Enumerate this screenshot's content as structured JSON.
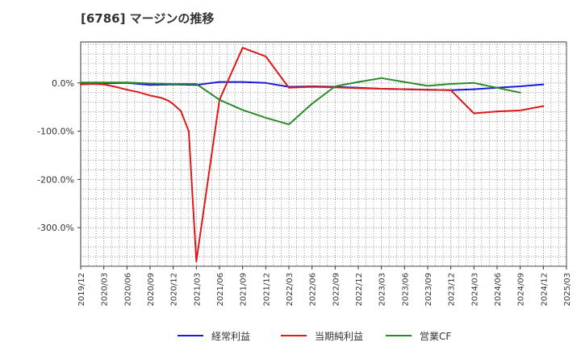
{
  "chart_data": {
    "type": "line",
    "title": "[6786]  マージンの推移",
    "xlabel": "",
    "ylabel": "",
    "ylim": [
      -380,
      85
    ],
    "yticks": [
      0,
      -100,
      -200,
      -300
    ],
    "ytick_labels": [
      "0.0%",
      "-100.0%",
      "-200.0%",
      "-300.0%"
    ],
    "x": [
      "2019/12",
      "2020/03",
      "2020/06",
      "2020/09",
      "2020/12",
      "2021/03",
      "2021/06",
      "2021/09",
      "2021/12",
      "2022/03",
      "2022/06",
      "2022/09",
      "2022/12",
      "2023/03",
      "2023/06",
      "2023/09",
      "2023/12",
      "2024/03",
      "2024/06",
      "2024/09",
      "2024/12",
      "2025/03"
    ],
    "grid": true,
    "legend_position": "bottom",
    "series": [
      {
        "name": "経常利益",
        "color": "#1a1adc",
        "points": [
          [
            0,
            0
          ],
          [
            1,
            -1
          ],
          [
            2,
            0
          ],
          [
            3,
            -4
          ],
          [
            4,
            -3
          ],
          [
            5,
            -4
          ],
          [
            6,
            2
          ],
          [
            7,
            2
          ],
          [
            8,
            0
          ],
          [
            9,
            -8
          ],
          [
            10,
            -7
          ],
          [
            11,
            -8
          ],
          [
            12,
            -10
          ],
          [
            13,
            -12
          ],
          [
            14,
            -13
          ],
          [
            15,
            -14
          ],
          [
            16,
            -15
          ],
          [
            17,
            -13
          ],
          [
            18,
            -10
          ],
          [
            19,
            -7
          ],
          [
            20,
            -3
          ]
        ]
      },
      {
        "name": "当期純利益",
        "color": "#dc1a1a",
        "points": [
          [
            0,
            -3
          ],
          [
            0.5,
            -2
          ],
          [
            1,
            -3
          ],
          [
            1.5,
            -8
          ],
          [
            2,
            -14
          ],
          [
            2.5,
            -19
          ],
          [
            3,
            -26
          ],
          [
            3.5,
            -31
          ],
          [
            3.8,
            -37
          ],
          [
            4,
            -44
          ],
          [
            4.33,
            -58
          ],
          [
            4.67,
            -100
          ],
          [
            5,
            -370
          ],
          [
            6,
            -35
          ],
          [
            7,
            73
          ],
          [
            8,
            55
          ],
          [
            9,
            -10
          ],
          [
            10,
            -8
          ],
          [
            11,
            -9
          ],
          [
            12,
            -11
          ],
          [
            13,
            -12
          ],
          [
            14,
            -13
          ],
          [
            15,
            -14
          ],
          [
            16,
            -15
          ],
          [
            17,
            -63
          ],
          [
            18,
            -59
          ],
          [
            19,
            -57
          ],
          [
            20,
            -48
          ]
        ]
      },
      {
        "name": "営業CF",
        "color": "#2a8a2a",
        "points": [
          [
            0,
            1
          ],
          [
            1,
            1
          ],
          [
            2,
            1
          ],
          [
            3,
            -1
          ],
          [
            4,
            -2
          ],
          [
            5,
            -2
          ],
          [
            6,
            -35
          ],
          [
            7,
            -56
          ],
          [
            8,
            -72
          ],
          [
            9,
            -86
          ],
          [
            10,
            -43
          ],
          [
            11,
            -7
          ],
          [
            12,
            2
          ],
          [
            13,
            10
          ],
          [
            14,
            2
          ],
          [
            15,
            -6
          ],
          [
            16,
            -2
          ],
          [
            17,
            0
          ],
          [
            18,
            -10
          ],
          [
            19,
            -20
          ]
        ]
      }
    ]
  }
}
